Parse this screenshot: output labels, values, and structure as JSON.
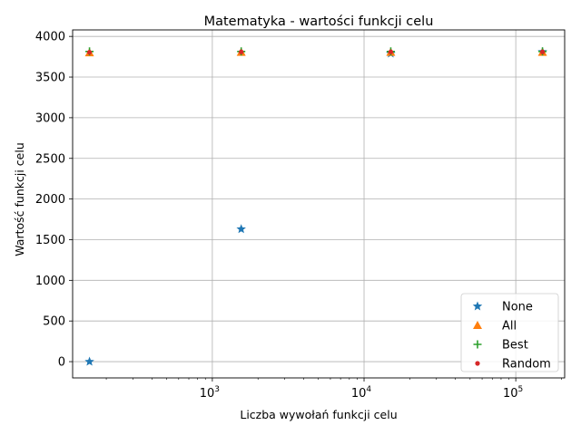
{
  "chart_data": {
    "type": "scatter",
    "title": "Matematyka - wartości funkcji celu",
    "xlabel": "Liczba wywołań funkcji celu",
    "ylabel": "Wartość funkcji celu",
    "xscale": "log",
    "xlim": [
      120,
      210000
    ],
    "ylim": [
      -200,
      4080
    ],
    "xticks": [
      {
        "value": 1000,
        "base": "10",
        "exp": "3"
      },
      {
        "value": 10000,
        "base": "10",
        "exp": "4"
      },
      {
        "value": 100000,
        "base": "10",
        "exp": "5"
      }
    ],
    "yticks": [
      0,
      500,
      1000,
      1500,
      2000,
      2500,
      3000,
      3500,
      4000
    ],
    "grid": true,
    "legend_position": "lower-right",
    "series": [
      {
        "name": "None",
        "marker": "star",
        "color": "#1f77b4",
        "points": [
          [
            155,
            0
          ],
          [
            1550,
            1630
          ],
          [
            15000,
            3790
          ],
          [
            150000,
            3810
          ]
        ]
      },
      {
        "name": "All",
        "marker": "triangle",
        "color": "#ff7f0e",
        "points": [
          [
            155,
            3800
          ],
          [
            1550,
            3805
          ],
          [
            15000,
            3805
          ],
          [
            150000,
            3805
          ]
        ]
      },
      {
        "name": "Best",
        "marker": "plus",
        "color": "#2ca02c",
        "points": [
          [
            155,
            3815
          ],
          [
            1550,
            3815
          ],
          [
            15000,
            3815
          ],
          [
            150000,
            3815
          ]
        ]
      },
      {
        "name": "Random",
        "marker": "dot",
        "color": "#d62728",
        "points": [
          [
            155,
            3805
          ],
          [
            1550,
            3810
          ],
          [
            15000,
            3810
          ],
          [
            150000,
            3810
          ]
        ]
      }
    ]
  }
}
